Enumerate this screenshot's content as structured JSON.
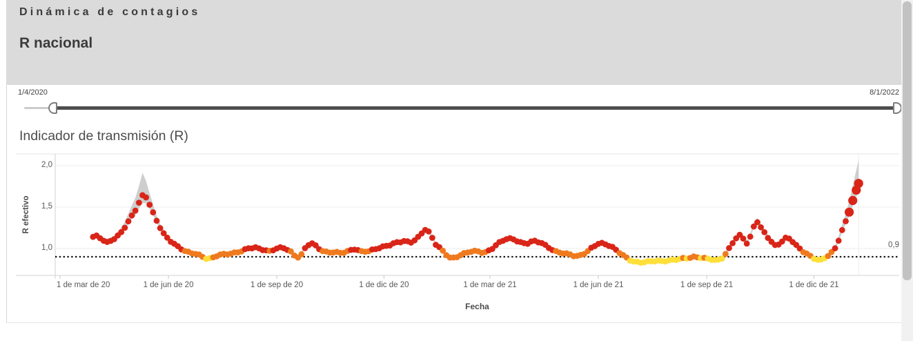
{
  "page": {
    "kicker": "Dinámica de contagios",
    "title": "R nacional"
  },
  "slider": {
    "start_label": "1/4/2020",
    "end_label": "8/1/2022"
  },
  "chart_data": {
    "type": "scatter",
    "title": "Indicador de transmisión (R)",
    "xlabel": "Fecha",
    "ylabel": "R efectivo",
    "ylim": [
      0.675,
      2.14
    ],
    "x_range": [
      "2020-02-26",
      "2022-02-10"
    ],
    "grid": "horizontal-light",
    "y_ticks": [
      {
        "label": "2,0",
        "value": 2.0
      },
      {
        "label": "1,5",
        "value": 1.5
      },
      {
        "label": "1,0",
        "value": 1.0
      }
    ],
    "x_ticks": [
      {
        "label": "1 de mar de 20",
        "date": "2020-03-01"
      },
      {
        "label": "1 de jun de 20",
        "date": "2020-06-01"
      },
      {
        "label": "1 de sep de 20",
        "date": "2020-09-01"
      },
      {
        "label": "1 de dic de 20",
        "date": "2020-12-01"
      },
      {
        "label": "1 de mar de 21",
        "date": "2021-03-01"
      },
      {
        "label": "1 de jun de 21",
        "date": "2021-06-01"
      },
      {
        "label": "1 de sep de 21",
        "date": "2021-09-01"
      },
      {
        "label": "1 de dic de 21",
        "date": "2021-12-01"
      }
    ],
    "reference_line": {
      "value": 0.9,
      "label": "0,9",
      "style": "dotted-black"
    },
    "colors": {
      "red": "#d92518",
      "orange": "#ef7a1e",
      "yellow": "#ffdf3a",
      "band": "#c9c9c9"
    },
    "color_rule": {
      "red_min": 0.975,
      "orange_min": 0.885
    },
    "point_interval_days": 3,
    "point_radius": 4.4,
    "highlight_radius": 6.6,
    "highlight_from": "2021-12-30",
    "series": [
      {
        "name": "R",
        "points": [
          [
            "2020-03-29",
            1.14
          ],
          [
            "2020-04-02",
            1.15
          ],
          [
            "2020-04-06",
            1.1
          ],
          [
            "2020-04-10",
            1.07
          ],
          [
            "2020-04-14",
            1.1
          ],
          [
            "2020-04-18",
            1.14
          ],
          [
            "2020-04-22",
            1.2
          ],
          [
            "2020-04-26",
            1.28
          ],
          [
            "2020-04-30",
            1.37
          ],
          [
            "2020-05-04",
            1.46
          ],
          [
            "2020-05-08",
            1.58
          ],
          [
            "2020-05-11",
            1.66
          ],
          [
            "2020-05-14",
            1.6
          ],
          [
            "2020-05-17",
            1.5
          ],
          [
            "2020-05-20",
            1.4
          ],
          [
            "2020-05-24",
            1.28
          ],
          [
            "2020-05-28",
            1.18
          ],
          [
            "2020-06-01",
            1.11
          ],
          [
            "2020-06-05",
            1.06
          ],
          [
            "2020-06-10",
            1.01
          ],
          [
            "2020-06-15",
            0.97
          ],
          [
            "2020-06-20",
            0.95
          ],
          [
            "2020-06-25",
            0.94
          ],
          [
            "2020-06-30",
            0.9
          ],
          [
            "2020-07-04",
            0.87
          ],
          [
            "2020-07-08",
            0.88
          ],
          [
            "2020-07-12",
            0.91
          ],
          [
            "2020-07-16",
            0.93
          ],
          [
            "2020-07-22",
            0.94
          ],
          [
            "2020-07-28",
            0.95
          ],
          [
            "2020-08-03",
            0.97
          ],
          [
            "2020-08-08",
            1.0
          ],
          [
            "2020-08-14",
            1.01
          ],
          [
            "2020-08-20",
            0.99
          ],
          [
            "2020-08-26",
            0.97
          ],
          [
            "2020-09-01",
            1.0
          ],
          [
            "2020-09-06",
            1.01
          ],
          [
            "2020-09-12",
            0.97
          ],
          [
            "2020-09-18",
            0.89
          ],
          [
            "2020-09-22",
            0.93
          ],
          [
            "2020-09-26",
            1.03
          ],
          [
            "2020-09-30",
            1.07
          ],
          [
            "2020-10-04",
            1.03
          ],
          [
            "2020-10-09",
            0.97
          ],
          [
            "2020-10-14",
            0.95
          ],
          [
            "2020-10-20",
            0.96
          ],
          [
            "2020-10-26",
            0.95
          ],
          [
            "2020-11-01",
            0.97
          ],
          [
            "2020-11-06",
            0.99
          ],
          [
            "2020-11-12",
            0.96
          ],
          [
            "2020-11-18",
            0.97
          ],
          [
            "2020-11-24",
            1.0
          ],
          [
            "2020-11-30",
            1.02
          ],
          [
            "2020-12-06",
            1.04
          ],
          [
            "2020-12-12",
            1.07
          ],
          [
            "2020-12-18",
            1.09
          ],
          [
            "2020-12-24",
            1.08
          ],
          [
            "2020-12-29",
            1.12
          ],
          [
            "2021-01-03",
            1.2
          ],
          [
            "2021-01-06",
            1.24
          ],
          [
            "2021-01-10",
            1.15
          ],
          [
            "2021-01-14",
            1.05
          ],
          [
            "2021-01-18",
            1.0
          ],
          [
            "2021-01-23",
            0.93
          ],
          [
            "2021-01-27",
            0.88
          ],
          [
            "2021-02-01",
            0.9
          ],
          [
            "2021-02-06",
            0.93
          ],
          [
            "2021-02-12",
            0.96
          ],
          [
            "2021-02-18",
            0.97
          ],
          [
            "2021-02-24",
            0.95
          ],
          [
            "2021-03-02",
            0.99
          ],
          [
            "2021-03-08",
            1.06
          ],
          [
            "2021-03-14",
            1.11
          ],
          [
            "2021-03-20",
            1.12
          ],
          [
            "2021-03-26",
            1.08
          ],
          [
            "2021-04-01",
            1.06
          ],
          [
            "2021-04-07",
            1.09
          ],
          [
            "2021-04-13",
            1.07
          ],
          [
            "2021-04-19",
            1.02
          ],
          [
            "2021-04-25",
            0.97
          ],
          [
            "2021-05-01",
            0.95
          ],
          [
            "2021-05-07",
            0.93
          ],
          [
            "2021-05-13",
            0.9
          ],
          [
            "2021-05-18",
            0.92
          ],
          [
            "2021-05-23",
            0.97
          ],
          [
            "2021-05-28",
            1.03
          ],
          [
            "2021-06-02",
            1.07
          ],
          [
            "2021-06-07",
            1.05
          ],
          [
            "2021-06-12",
            1.02
          ],
          [
            "2021-06-17",
            0.97
          ],
          [
            "2021-06-22",
            0.92
          ],
          [
            "2021-06-27",
            0.87
          ],
          [
            "2021-07-02",
            0.84
          ],
          [
            "2021-07-08",
            0.83
          ],
          [
            "2021-07-14",
            0.84
          ],
          [
            "2021-07-20",
            0.85
          ],
          [
            "2021-07-26",
            0.85
          ],
          [
            "2021-08-01",
            0.86
          ],
          [
            "2021-08-08",
            0.87
          ],
          [
            "2021-08-15",
            0.88
          ],
          [
            "2021-08-22",
            0.9
          ],
          [
            "2021-08-29",
            0.89
          ],
          [
            "2021-09-05",
            0.87
          ],
          [
            "2021-09-10",
            0.85
          ],
          [
            "2021-09-14",
            0.88
          ],
          [
            "2021-09-18",
            0.95
          ],
          [
            "2021-09-23",
            1.07
          ],
          [
            "2021-09-27",
            1.15
          ],
          [
            "2021-09-30",
            1.17
          ],
          [
            "2021-10-03",
            1.1
          ],
          [
            "2021-10-06",
            1.05
          ],
          [
            "2021-10-09",
            1.18
          ],
          [
            "2021-10-12",
            1.3
          ],
          [
            "2021-10-14",
            1.32
          ],
          [
            "2021-10-17",
            1.25
          ],
          [
            "2021-10-21",
            1.17
          ],
          [
            "2021-10-25",
            1.1
          ],
          [
            "2021-10-29",
            1.04
          ],
          [
            "2021-11-02",
            1.06
          ],
          [
            "2021-11-06",
            1.12
          ],
          [
            "2021-11-09",
            1.13
          ],
          [
            "2021-11-13",
            1.08
          ],
          [
            "2021-11-17",
            1.02
          ],
          [
            "2021-11-21",
            0.97
          ],
          [
            "2021-11-25",
            0.94
          ],
          [
            "2021-11-29",
            0.9
          ],
          [
            "2021-12-03",
            0.87
          ],
          [
            "2021-12-07",
            0.86
          ],
          [
            "2021-12-11",
            0.89
          ],
          [
            "2021-12-15",
            0.93
          ],
          [
            "2021-12-19",
            1.0
          ],
          [
            "2021-12-22",
            1.1
          ],
          [
            "2021-12-25",
            1.22
          ],
          [
            "2021-12-28",
            1.33
          ],
          [
            "2021-12-31",
            1.45
          ],
          [
            "2022-01-03",
            1.58
          ],
          [
            "2022-01-06",
            1.7
          ],
          [
            "2022-01-08",
            1.79
          ]
        ]
      }
    ],
    "confidence_band_spread": [
      [
        "2020-03-29",
        0.03
      ],
      [
        "2020-04-18",
        0.045
      ],
      [
        "2020-04-26",
        0.075
      ],
      [
        "2020-05-02",
        0.13
      ],
      [
        "2020-05-07",
        0.2
      ],
      [
        "2020-05-10",
        0.27
      ],
      [
        "2020-05-13",
        0.2
      ],
      [
        "2020-05-17",
        0.12
      ],
      [
        "2020-05-22",
        0.06
      ],
      [
        "2020-06-01",
        0.03
      ],
      [
        "2020-12-01",
        0.025
      ],
      [
        "2021-06-01",
        0.025
      ],
      [
        "2021-10-08",
        0.035
      ],
      [
        "2021-10-13",
        0.06
      ],
      [
        "2021-10-18",
        0.035
      ],
      [
        "2021-11-15",
        0.025
      ],
      [
        "2021-12-18",
        0.03
      ],
      [
        "2021-12-24",
        0.06
      ],
      [
        "2021-12-29",
        0.1
      ],
      [
        "2022-01-02",
        0.16
      ],
      [
        "2022-01-05",
        0.22
      ],
      [
        "2022-01-08",
        0.28
      ]
    ]
  }
}
